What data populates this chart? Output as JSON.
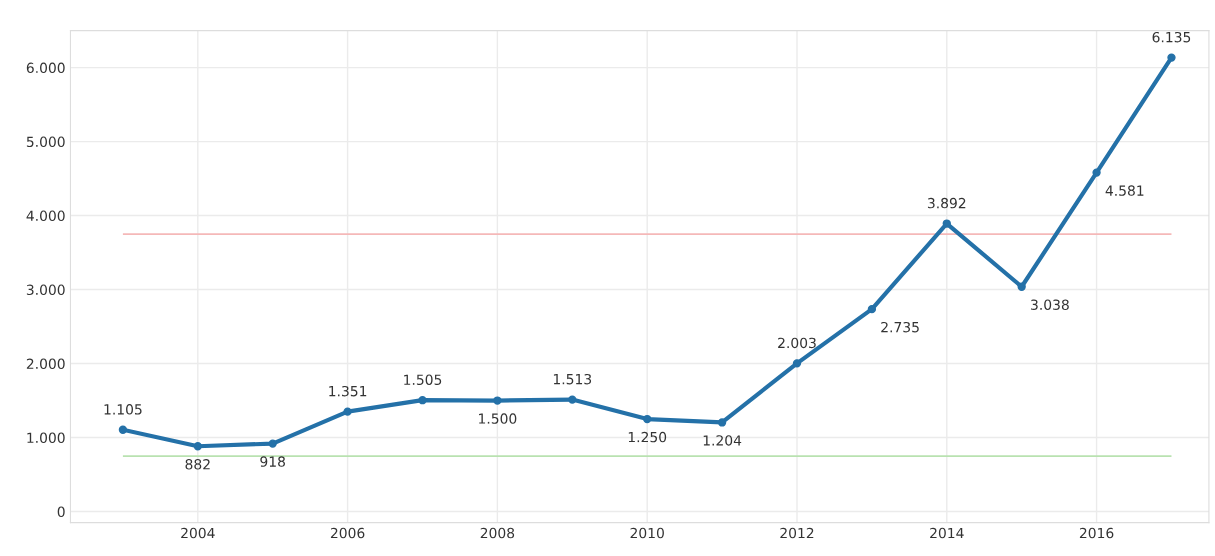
{
  "chart_data": {
    "type": "line",
    "x": [
      2003,
      2004,
      2005,
      2006,
      2007,
      2008,
      2009,
      2010,
      2011,
      2012,
      2013,
      2014,
      2015,
      2016,
      2017
    ],
    "series": [
      {
        "color": "#2471a8",
        "values": [
          1105,
          882,
          918,
          1351,
          1505,
          1500,
          1513,
          1250,
          1204,
          2003,
          2735,
          3892,
          3038,
          4581,
          6135
        ],
        "value_labels": [
          "1.105",
          "882",
          "918",
          "1.351",
          "1.505",
          "1.500",
          "1.513",
          "1.250",
          "1.204",
          "2.003",
          "2.735",
          "3.892",
          "3.038",
          "4.581",
          "6.135"
        ]
      }
    ],
    "xlim": [
      2002.3,
      2017.5
    ],
    "ylim": [
      -150,
      6500
    ],
    "xticks": [
      2004,
      2006,
      2008,
      2010,
      2012,
      2014,
      2016
    ],
    "yticks": [
      0,
      {
        "value": 1000,
        "label": "1.000"
      },
      {
        "value": 2000,
        "label": "2.000"
      },
      {
        "value": 3000,
        "label": "3.000"
      },
      {
        "value": 4000,
        "label": "4.000"
      },
      {
        "value": 5000,
        "label": "5.000"
      },
      {
        "value": 6000,
        "label": "6.000"
      }
    ],
    "ref_lines": [
      {
        "axis": "y",
        "value": 3750,
        "color": "#f5b8b8"
      },
      {
        "axis": "y",
        "value": 750,
        "color": "#b9e2b0"
      }
    ],
    "grid": true,
    "marker": "circle",
    "line_style": "solid"
  }
}
